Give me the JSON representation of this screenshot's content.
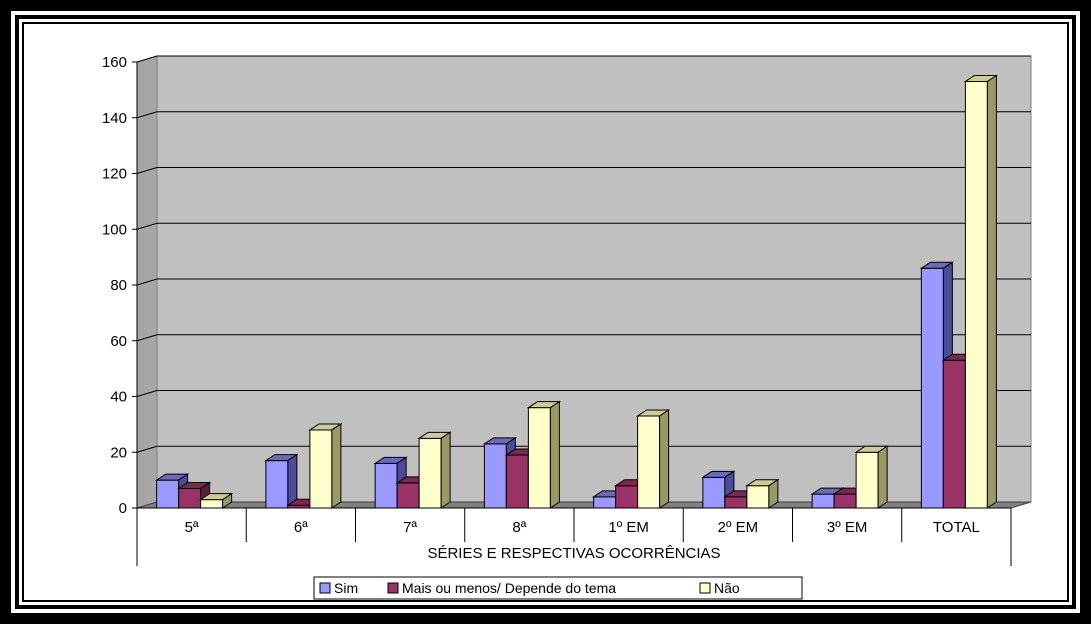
{
  "chart_data": {
    "type": "bar",
    "title": "",
    "xlabel": "SÉRIES E RESPECTIVAS OCORRÊNCIAS",
    "ylabel": "",
    "ylim": [
      0,
      160
    ],
    "yticks": [
      0,
      20,
      40,
      60,
      80,
      100,
      120,
      140,
      160
    ],
    "categories": [
      "5ª",
      "6ª",
      "7ª",
      "8ª",
      "1º EM",
      "2º EM",
      "3º EM",
      "TOTAL"
    ],
    "series": [
      {
        "name": "Sim",
        "values": [
          10,
          17,
          16,
          23,
          4,
          11,
          5,
          86
        ],
        "color": "#9999ff",
        "side_color": "#4c4c99",
        "top_color": "#6b6bb8"
      },
      {
        "name": "Mais ou menos/ Depende do tema",
        "values": [
          7,
          1,
          9,
          19,
          8,
          4,
          5,
          53
        ],
        "color": "#993366",
        "side_color": "#5a1f3c",
        "top_color": "#7a2a52"
      },
      {
        "name": "Não",
        "values": [
          3,
          28,
          25,
          36,
          33,
          8,
          20,
          153
        ],
        "color": "#ffffcc",
        "side_color": "#999966",
        "top_color": "#cccc99"
      }
    ],
    "grid": true,
    "legend_position": "bottom",
    "background_color": "#c0c0c0"
  }
}
